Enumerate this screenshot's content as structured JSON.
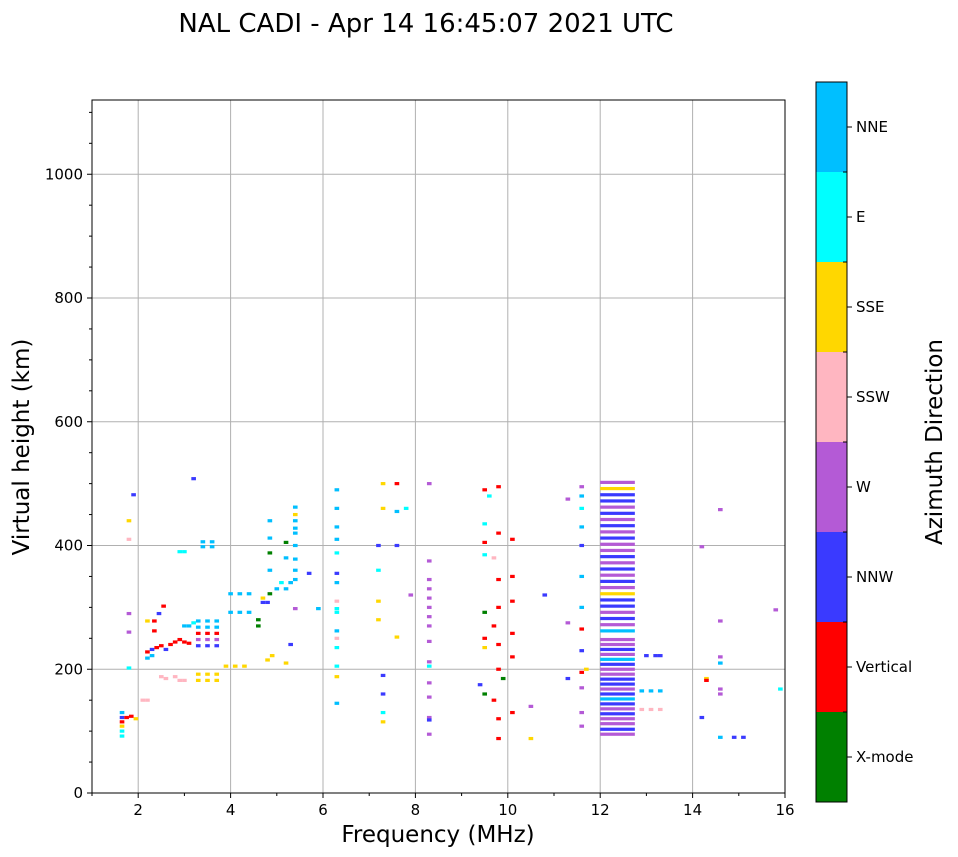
{
  "chart_data": {
    "type": "scatter",
    "title": "NAL CADI - Apr 14 16:45:07 2021 UTC",
    "xlabel": "Frequency (MHz)",
    "ylabel": "Virtual height (km)",
    "xlim": [
      1,
      16
    ],
    "ylim": [
      0,
      1120
    ],
    "xticks": [
      2,
      4,
      6,
      8,
      10,
      12,
      14,
      16
    ],
    "yticks": [
      0,
      200,
      400,
      600,
      800,
      1000
    ],
    "grid": true,
    "colorbar": {
      "label": "Azimuth Direction",
      "categories": [
        {
          "name": "X-mode",
          "color": "#008000"
        },
        {
          "name": "Vertical",
          "color": "#ff0000"
        },
        {
          "name": "NNW",
          "color": "#3a3aff"
        },
        {
          "name": "W",
          "color": "#b45ad6"
        },
        {
          "name": "SSW",
          "color": "#ffb6c1"
        },
        {
          "name": "SSE",
          "color": "#ffd700"
        },
        {
          "name": "E",
          "color": "#00ffff"
        },
        {
          "name": "NNE",
          "color": "#00bfff"
        }
      ]
    },
    "echo_dash_width_mhz": 0.1,
    "echoes": [
      {
        "f": 1.65,
        "h": 92,
        "d": "E"
      },
      {
        "f": 1.65,
        "h": 100,
        "d": "E"
      },
      {
        "f": 1.65,
        "h": 108,
        "d": "SSE"
      },
      {
        "f": 1.65,
        "h": 115,
        "d": "Vertical"
      },
      {
        "f": 1.65,
        "h": 122,
        "d": "NNW"
      },
      {
        "f": 1.65,
        "h": 130,
        "d": "NNE"
      },
      {
        "f": 1.75,
        "h": 122,
        "d": "Vertical"
      },
      {
        "f": 1.85,
        "h": 124,
        "d": "Vertical"
      },
      {
        "f": 1.95,
        "h": 120,
        "d": "SSE"
      },
      {
        "f": 1.8,
        "h": 202,
        "d": "E"
      },
      {
        "f": 1.8,
        "h": 260,
        "d": "W"
      },
      {
        "f": 1.8,
        "h": 290,
        "d": "W"
      },
      {
        "f": 1.8,
        "h": 410,
        "d": "SSW"
      },
      {
        "f": 1.8,
        "h": 440,
        "d": "SSE"
      },
      {
        "f": 1.9,
        "h": 482,
        "d": "NNW"
      },
      {
        "f": 2.1,
        "h": 150,
        "d": "SSW"
      },
      {
        "f": 2.2,
        "h": 150,
        "d": "SSW"
      },
      {
        "f": 2.2,
        "h": 218,
        "d": "NNE"
      },
      {
        "f": 2.3,
        "h": 222,
        "d": "NNE"
      },
      {
        "f": 2.2,
        "h": 228,
        "d": "Vertical"
      },
      {
        "f": 2.3,
        "h": 232,
        "d": "NNW"
      },
      {
        "f": 2.4,
        "h": 235,
        "d": "Vertical"
      },
      {
        "f": 2.5,
        "h": 238,
        "d": "Vertical"
      },
      {
        "f": 2.6,
        "h": 232,
        "d": "NNW"
      },
      {
        "f": 2.7,
        "h": 240,
        "d": "Vertical"
      },
      {
        "f": 2.8,
        "h": 244,
        "d": "Vertical"
      },
      {
        "f": 2.9,
        "h": 248,
        "d": "Vertical"
      },
      {
        "f": 3.0,
        "h": 244,
        "d": "Vertical"
      },
      {
        "f": 3.1,
        "h": 242,
        "d": "Vertical"
      },
      {
        "f": 2.35,
        "h": 262,
        "d": "Vertical"
      },
      {
        "f": 2.35,
        "h": 278,
        "d": "Vertical"
      },
      {
        "f": 2.45,
        "h": 290,
        "d": "NNW"
      },
      {
        "f": 2.55,
        "h": 302,
        "d": "Vertical"
      },
      {
        "f": 2.2,
        "h": 278,
        "d": "SSE"
      },
      {
        "f": 2.5,
        "h": 188,
        "d": "SSW"
      },
      {
        "f": 2.6,
        "h": 185,
        "d": "SSW"
      },
      {
        "f": 2.8,
        "h": 188,
        "d": "SSW"
      },
      {
        "f": 2.9,
        "h": 182,
        "d": "SSW"
      },
      {
        "f": 3.0,
        "h": 182,
        "d": "SSW"
      },
      {
        "f": 3.0,
        "h": 270,
        "d": "NNE"
      },
      {
        "f": 3.1,
        "h": 270,
        "d": "NNE"
      },
      {
        "f": 3.2,
        "h": 275,
        "d": "E"
      },
      {
        "f": 2.9,
        "h": 390,
        "d": "E"
      },
      {
        "f": 3.0,
        "h": 390,
        "d": "E"
      },
      {
        "f": 3.2,
        "h": 508,
        "d": "NNW"
      },
      {
        "f": 3.3,
        "h": 192,
        "d": "SSE"
      },
      {
        "f": 3.5,
        "h": 192,
        "d": "SSE"
      },
      {
        "f": 3.7,
        "h": 192,
        "d": "SSE"
      },
      {
        "f": 3.3,
        "h": 182,
        "d": "SSE"
      },
      {
        "f": 3.5,
        "h": 182,
        "d": "SSE"
      },
      {
        "f": 3.7,
        "h": 182,
        "d": "SSE"
      },
      {
        "f": 3.3,
        "h": 238,
        "d": "NNW"
      },
      {
        "f": 3.5,
        "h": 238,
        "d": "NNW"
      },
      {
        "f": 3.7,
        "h": 238,
        "d": "NNW"
      },
      {
        "f": 3.3,
        "h": 248,
        "d": "W"
      },
      {
        "f": 3.5,
        "h": 248,
        "d": "W"
      },
      {
        "f": 3.7,
        "h": 248,
        "d": "W"
      },
      {
        "f": 3.3,
        "h": 258,
        "d": "Vertical"
      },
      {
        "f": 3.5,
        "h": 258,
        "d": "Vertical"
      },
      {
        "f": 3.7,
        "h": 258,
        "d": "Vertical"
      },
      {
        "f": 3.3,
        "h": 268,
        "d": "NNE"
      },
      {
        "f": 3.5,
        "h": 268,
        "d": "NNE"
      },
      {
        "f": 3.7,
        "h": 268,
        "d": "NNE"
      },
      {
        "f": 3.3,
        "h": 278,
        "d": "NNE"
      },
      {
        "f": 3.5,
        "h": 278,
        "d": "NNE"
      },
      {
        "f": 3.7,
        "h": 278,
        "d": "NNE"
      },
      {
        "f": 3.4,
        "h": 398,
        "d": "NNE"
      },
      {
        "f": 3.6,
        "h": 398,
        "d": "NNE"
      },
      {
        "f": 3.4,
        "h": 406,
        "d": "NNE"
      },
      {
        "f": 3.6,
        "h": 406,
        "d": "NNE"
      },
      {
        "f": 3.9,
        "h": 205,
        "d": "SSE"
      },
      {
        "f": 4.1,
        "h": 205,
        "d": "SSE"
      },
      {
        "f": 4.3,
        "h": 205,
        "d": "SSE"
      },
      {
        "f": 4.0,
        "h": 292,
        "d": "NNE"
      },
      {
        "f": 4.2,
        "h": 292,
        "d": "NNE"
      },
      {
        "f": 4.4,
        "h": 292,
        "d": "NNE"
      },
      {
        "f": 4.0,
        "h": 322,
        "d": "NNE"
      },
      {
        "f": 4.2,
        "h": 322,
        "d": "NNE"
      },
      {
        "f": 4.4,
        "h": 322,
        "d": "NNE"
      },
      {
        "f": 4.6,
        "h": 270,
        "d": "X-mode"
      },
      {
        "f": 4.6,
        "h": 280,
        "d": "X-mode"
      },
      {
        "f": 4.7,
        "h": 308,
        "d": "NNW"
      },
      {
        "f": 4.8,
        "h": 308,
        "d": "NNW"
      },
      {
        "f": 4.7,
        "h": 315,
        "d": "SSE"
      },
      {
        "f": 4.8,
        "h": 215,
        "d": "SSE"
      },
      {
        "f": 4.9,
        "h": 222,
        "d": "SSE"
      },
      {
        "f": 4.85,
        "h": 322,
        "d": "X-mode"
      },
      {
        "f": 4.85,
        "h": 360,
        "d": "NNE"
      },
      {
        "f": 4.85,
        "h": 388,
        "d": "X-mode"
      },
      {
        "f": 4.85,
        "h": 412,
        "d": "NNE"
      },
      {
        "f": 4.85,
        "h": 440,
        "d": "NNE"
      },
      {
        "f": 5.0,
        "h": 330,
        "d": "NNE"
      },
      {
        "f": 5.1,
        "h": 340,
        "d": "E"
      },
      {
        "f": 5.2,
        "h": 330,
        "d": "NNE"
      },
      {
        "f": 5.3,
        "h": 340,
        "d": "NNE"
      },
      {
        "f": 5.4,
        "h": 345,
        "d": "NNE"
      },
      {
        "f": 5.4,
        "h": 360,
        "d": "NNE"
      },
      {
        "f": 5.4,
        "h": 378,
        "d": "NNE"
      },
      {
        "f": 5.4,
        "h": 400,
        "d": "NNE"
      },
      {
        "f": 5.4,
        "h": 420,
        "d": "NNE"
      },
      {
        "f": 5.4,
        "h": 428,
        "d": "NNE"
      },
      {
        "f": 5.4,
        "h": 440,
        "d": "NNE"
      },
      {
        "f": 5.4,
        "h": 450,
        "d": "SSE"
      },
      {
        "f": 5.4,
        "h": 462,
        "d": "NNE"
      },
      {
        "f": 5.2,
        "h": 405,
        "d": "X-mode"
      },
      {
        "f": 5.2,
        "h": 380,
        "d": "NNE"
      },
      {
        "f": 5.3,
        "h": 240,
        "d": "NNW"
      },
      {
        "f": 5.4,
        "h": 298,
        "d": "W"
      },
      {
        "f": 5.7,
        "h": 355,
        "d": "NNW"
      },
      {
        "f": 5.9,
        "h": 298,
        "d": "NNE"
      },
      {
        "f": 5.2,
        "h": 210,
        "d": "SSE"
      },
      {
        "f": 6.3,
        "h": 145,
        "d": "NNE"
      },
      {
        "f": 6.3,
        "h": 188,
        "d": "SSE"
      },
      {
        "f": 6.3,
        "h": 205,
        "d": "E"
      },
      {
        "f": 6.3,
        "h": 235,
        "d": "E"
      },
      {
        "f": 6.3,
        "h": 250,
        "d": "SSW"
      },
      {
        "f": 6.3,
        "h": 262,
        "d": "NNE"
      },
      {
        "f": 6.3,
        "h": 292,
        "d": "E"
      },
      {
        "f": 6.3,
        "h": 298,
        "d": "E"
      },
      {
        "f": 6.3,
        "h": 310,
        "d": "SSW"
      },
      {
        "f": 6.3,
        "h": 340,
        "d": "NNE"
      },
      {
        "f": 6.3,
        "h": 355,
        "d": "NNW"
      },
      {
        "f": 6.3,
        "h": 388,
        "d": "E"
      },
      {
        "f": 6.3,
        "h": 410,
        "d": "NNE"
      },
      {
        "f": 6.3,
        "h": 430,
        "d": "NNE"
      },
      {
        "f": 6.3,
        "h": 460,
        "d": "NNE"
      },
      {
        "f": 6.3,
        "h": 490,
        "d": "NNE"
      },
      {
        "f": 7.2,
        "h": 400,
        "d": "NNW"
      },
      {
        "f": 7.2,
        "h": 360,
        "d": "E"
      },
      {
        "f": 7.2,
        "h": 310,
        "d": "SSE"
      },
      {
        "f": 7.2,
        "h": 280,
        "d": "SSE"
      },
      {
        "f": 7.3,
        "h": 460,
        "d": "SSE"
      },
      {
        "f": 7.3,
        "h": 500,
        "d": "SSE"
      },
      {
        "f": 7.3,
        "h": 190,
        "d": "NNW"
      },
      {
        "f": 7.3,
        "h": 160,
        "d": "NNW"
      },
      {
        "f": 7.3,
        "h": 130,
        "d": "E"
      },
      {
        "f": 7.3,
        "h": 115,
        "d": "SSE"
      },
      {
        "f": 7.6,
        "h": 500,
        "d": "Vertical"
      },
      {
        "f": 7.6,
        "h": 455,
        "d": "NNE"
      },
      {
        "f": 7.6,
        "h": 400,
        "d": "NNW"
      },
      {
        "f": 7.6,
        "h": 252,
        "d": "SSE"
      },
      {
        "f": 7.8,
        "h": 460,
        "d": "E"
      },
      {
        "f": 7.9,
        "h": 320,
        "d": "W"
      },
      {
        "f": 8.3,
        "h": 500,
        "d": "W"
      },
      {
        "f": 8.3,
        "h": 375,
        "d": "W"
      },
      {
        "f": 8.3,
        "h": 345,
        "d": "W"
      },
      {
        "f": 8.3,
        "h": 330,
        "d": "W"
      },
      {
        "f": 8.3,
        "h": 315,
        "d": "W"
      },
      {
        "f": 8.3,
        "h": 300,
        "d": "W"
      },
      {
        "f": 8.3,
        "h": 285,
        "d": "W"
      },
      {
        "f": 8.3,
        "h": 270,
        "d": "W"
      },
      {
        "f": 8.3,
        "h": 245,
        "d": "W"
      },
      {
        "f": 8.3,
        "h": 212,
        "d": "W"
      },
      {
        "f": 8.3,
        "h": 205,
        "d": "E"
      },
      {
        "f": 8.3,
        "h": 178,
        "d": "W"
      },
      {
        "f": 8.3,
        "h": 155,
        "d": "W"
      },
      {
        "f": 8.3,
        "h": 122,
        "d": "W"
      },
      {
        "f": 8.3,
        "h": 95,
        "d": "W"
      },
      {
        "f": 8.3,
        "h": 118,
        "d": "NNW"
      },
      {
        "f": 9.4,
        "h": 175,
        "d": "NNW"
      },
      {
        "f": 9.5,
        "h": 490,
        "d": "Vertical"
      },
      {
        "f": 9.5,
        "h": 435,
        "d": "E"
      },
      {
        "f": 9.5,
        "h": 405,
        "d": "Vertical"
      },
      {
        "f": 9.5,
        "h": 385,
        "d": "E"
      },
      {
        "f": 9.5,
        "h": 292,
        "d": "X-mode"
      },
      {
        "f": 9.5,
        "h": 250,
        "d": "Vertical"
      },
      {
        "f": 9.5,
        "h": 235,
        "d": "SSE"
      },
      {
        "f": 9.5,
        "h": 160,
        "d": "X-mode"
      },
      {
        "f": 9.6,
        "h": 480,
        "d": "E"
      },
      {
        "f": 9.7,
        "h": 380,
        "d": "SSW"
      },
      {
        "f": 9.7,
        "h": 270,
        "d": "Vertical"
      },
      {
        "f": 9.7,
        "h": 150,
        "d": "Vertical"
      },
      {
        "f": 9.8,
        "h": 495,
        "d": "Vertical"
      },
      {
        "f": 9.8,
        "h": 420,
        "d": "Vertical"
      },
      {
        "f": 9.8,
        "h": 345,
        "d": "Vertical"
      },
      {
        "f": 9.8,
        "h": 300,
        "d": "Vertical"
      },
      {
        "f": 9.8,
        "h": 240,
        "d": "Vertical"
      },
      {
        "f": 9.8,
        "h": 200,
        "d": "Vertical"
      },
      {
        "f": 9.8,
        "h": 120,
        "d": "Vertical"
      },
      {
        "f": 9.8,
        "h": 88,
        "d": "Vertical"
      },
      {
        "f": 9.9,
        "h": 185,
        "d": "X-mode"
      },
      {
        "f": 10.1,
        "h": 410,
        "d": "Vertical"
      },
      {
        "f": 10.1,
        "h": 350,
        "d": "Vertical"
      },
      {
        "f": 10.1,
        "h": 310,
        "d": "Vertical"
      },
      {
        "f": 10.1,
        "h": 258,
        "d": "Vertical"
      },
      {
        "f": 10.1,
        "h": 220,
        "d": "Vertical"
      },
      {
        "f": 10.1,
        "h": 130,
        "d": "Vertical"
      },
      {
        "f": 10.5,
        "h": 140,
        "d": "W"
      },
      {
        "f": 10.5,
        "h": 88,
        "d": "SSE"
      },
      {
        "f": 10.8,
        "h": 320,
        "d": "NNW"
      },
      {
        "f": 11.3,
        "h": 475,
        "d": "W"
      },
      {
        "f": 11.3,
        "h": 275,
        "d": "W"
      },
      {
        "f": 11.3,
        "h": 185,
        "d": "NNW"
      },
      {
        "f": 11.6,
        "h": 495,
        "d": "W"
      },
      {
        "f": 11.6,
        "h": 480,
        "d": "NNE"
      },
      {
        "f": 11.6,
        "h": 460,
        "d": "E"
      },
      {
        "f": 11.6,
        "h": 430,
        "d": "NNE"
      },
      {
        "f": 11.6,
        "h": 400,
        "d": "NNW"
      },
      {
        "f": 11.6,
        "h": 350,
        "d": "NNE"
      },
      {
        "f": 11.6,
        "h": 300,
        "d": "NNE"
      },
      {
        "f": 11.6,
        "h": 265,
        "d": "Vertical"
      },
      {
        "f": 11.6,
        "h": 230,
        "d": "NNW"
      },
      {
        "f": 11.6,
        "h": 195,
        "d": "Vertical"
      },
      {
        "f": 11.6,
        "h": 170,
        "d": "W"
      },
      {
        "f": 11.6,
        "h": 130,
        "d": "W"
      },
      {
        "f": 11.6,
        "h": 108,
        "d": "W"
      },
      {
        "f": 11.7,
        "h": 200,
        "d": "SSE"
      },
      {
        "f": 13.0,
        "h": 222,
        "d": "NNW"
      },
      {
        "f": 13.2,
        "h": 222,
        "d": "NNW"
      },
      {
        "f": 13.3,
        "h": 222,
        "d": "NNW"
      },
      {
        "f": 12.9,
        "h": 165,
        "d": "NNE"
      },
      {
        "f": 13.1,
        "h": 165,
        "d": "NNE"
      },
      {
        "f": 13.3,
        "h": 165,
        "d": "NNE"
      },
      {
        "f": 12.9,
        "h": 135,
        "d": "SSW"
      },
      {
        "f": 13.1,
        "h": 135,
        "d": "SSW"
      },
      {
        "f": 13.3,
        "h": 135,
        "d": "SSW"
      },
      {
        "f": 14.2,
        "h": 398,
        "d": "W"
      },
      {
        "f": 14.3,
        "h": 185,
        "d": "SSE"
      },
      {
        "f": 14.3,
        "h": 182,
        "d": "Vertical"
      },
      {
        "f": 14.2,
        "h": 122,
        "d": "NNW"
      },
      {
        "f": 14.6,
        "h": 458,
        "d": "W"
      },
      {
        "f": 14.6,
        "h": 278,
        "d": "W"
      },
      {
        "f": 14.6,
        "h": 220,
        "d": "W"
      },
      {
        "f": 14.6,
        "h": 210,
        "d": "NNE"
      },
      {
        "f": 14.6,
        "h": 168,
        "d": "W"
      },
      {
        "f": 14.6,
        "h": 160,
        "d": "W"
      },
      {
        "f": 14.6,
        "h": 90,
        "d": "NNE"
      },
      {
        "f": 14.9,
        "h": 90,
        "d": "NNW"
      },
      {
        "f": 15.1,
        "h": 90,
        "d": "NNW"
      },
      {
        "f": 15.8,
        "h": 296,
        "d": "W"
      },
      {
        "f": 15.9,
        "h": 168,
        "d": "E"
      }
    ],
    "echo_column_12_6": {
      "f_from": 12.0,
      "f_to": 12.75,
      "heights": [
        95,
        103,
        112,
        120,
        128,
        136,
        144,
        152,
        160,
        168,
        176,
        184,
        192,
        200,
        208,
        216,
        224,
        232,
        240,
        248,
        262,
        272,
        282,
        292,
        302,
        312,
        322,
        332,
        342,
        352,
        362,
        372,
        382,
        392,
        402,
        412,
        422,
        432,
        442,
        452,
        462,
        472,
        482,
        492,
        502
      ],
      "dirs": [
        "W",
        "NNW",
        "W",
        "W",
        "NNW",
        "W",
        "NNW",
        "NNE",
        "NNW",
        "W",
        "NNW",
        "NNW",
        "W",
        "W",
        "NNW",
        "NNE",
        "W",
        "NNW",
        "W",
        "W",
        "NNE",
        "W",
        "NNW",
        "W",
        "NNW",
        "NNW",
        "SSE",
        "W",
        "NNW",
        "W",
        "NNW",
        "W",
        "NNW",
        "W",
        "W",
        "NNW",
        "W",
        "NNW",
        "W",
        "NNW",
        "W",
        "NNW",
        "NNW",
        "SSE",
        "W"
      ]
    }
  }
}
